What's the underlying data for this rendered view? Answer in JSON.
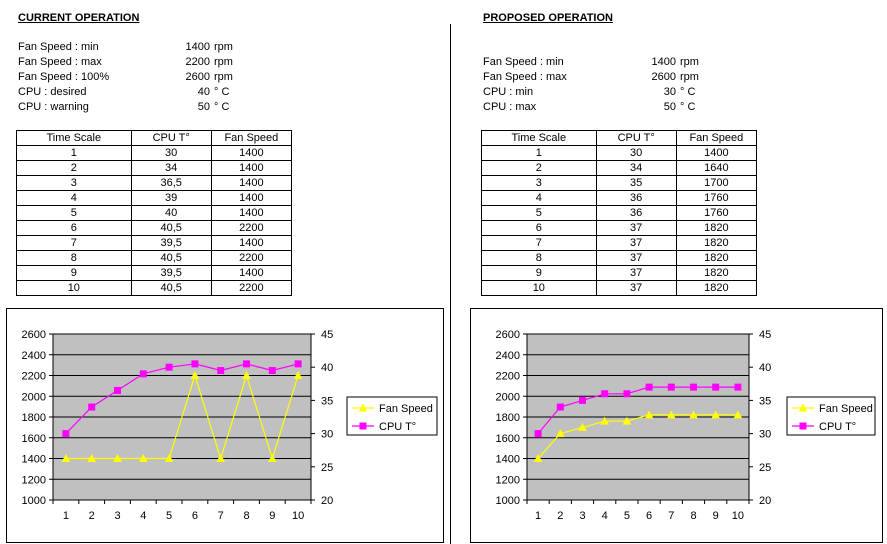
{
  "current": {
    "title": "CURRENT OPERATION",
    "params": [
      {
        "label": "Fan Speed : min",
        "value": "1400",
        "unit": "rpm"
      },
      {
        "label": "Fan Speed : max",
        "value": "2200",
        "unit": "rpm"
      },
      {
        "label": "Fan Speed : 100%",
        "value": "2600",
        "unit": "rpm"
      },
      {
        "label": "CPU : desired",
        "value": "40",
        "unit": "° C"
      },
      {
        "label": "CPU : warning",
        "value": "50",
        "unit": "° C"
      }
    ],
    "table": {
      "headers": [
        "Time Scale",
        "CPU T°",
        "Fan Speed"
      ],
      "rows": [
        [
          "1",
          "30",
          "1400"
        ],
        [
          "2",
          "34",
          "1400"
        ],
        [
          "3",
          "36,5",
          "1400"
        ],
        [
          "4",
          "39",
          "1400"
        ],
        [
          "5",
          "40",
          "1400"
        ],
        [
          "6",
          "40,5",
          "2200"
        ],
        [
          "7",
          "39,5",
          "1400"
        ],
        [
          "8",
          "40,5",
          "2200"
        ],
        [
          "9",
          "39,5",
          "1400"
        ],
        [
          "10",
          "40,5",
          "2200"
        ]
      ]
    }
  },
  "proposed": {
    "title": "PROPOSED OPERATION",
    "params": [
      {
        "label": "Fan Speed : min",
        "value": "1400",
        "unit": "rpm"
      },
      {
        "label": "Fan Speed : max",
        "value": "2600",
        "unit": "rpm"
      },
      {
        "label": "CPU : min",
        "value": "30",
        "unit": "° C"
      },
      {
        "label": "CPU : max",
        "value": "50",
        "unit": "° C"
      }
    ],
    "table": {
      "headers": [
        "Time Scale",
        "CPU T°",
        "Fan Speed"
      ],
      "rows": [
        [
          "1",
          "30",
          "1400"
        ],
        [
          "2",
          "34",
          "1640"
        ],
        [
          "3",
          "35",
          "1700"
        ],
        [
          "4",
          "36",
          "1760"
        ],
        [
          "5",
          "36",
          "1760"
        ],
        [
          "6",
          "37",
          "1820"
        ],
        [
          "7",
          "37",
          "1820"
        ],
        [
          "8",
          "37",
          "1820"
        ],
        [
          "9",
          "37",
          "1820"
        ],
        [
          "10",
          "37",
          "1820"
        ]
      ]
    }
  },
  "chart_data": [
    {
      "type": "line",
      "x": [
        1,
        2,
        3,
        4,
        5,
        6,
        7,
        8,
        9,
        10
      ],
      "y_left_ticks": [
        "1000",
        "1200",
        "1400",
        "1600",
        "1800",
        "2000",
        "2200",
        "2400",
        "2600"
      ],
      "y_right_ticks": [
        "20",
        "25",
        "30",
        "35",
        "40",
        "45"
      ],
      "ylim_left": [
        1000,
        2600
      ],
      "ylim_right": [
        20,
        45
      ],
      "series": [
        {
          "name": "Fan Speed",
          "axis": "left",
          "color": "#ffff00",
          "marker": "triangle",
          "values": [
            1400,
            1400,
            1400,
            1400,
            1400,
            2200,
            1400,
            2200,
            1400,
            2200
          ]
        },
        {
          "name": "CPU T°",
          "axis": "right",
          "color": "#ff00ff",
          "marker": "square",
          "values": [
            30,
            34,
            36.5,
            39,
            40,
            40.5,
            39.5,
            40.5,
            39.5,
            40.5
          ]
        }
      ],
      "plot_background": "#c0c0c0",
      "grid": true,
      "legend": "right"
    },
    {
      "type": "line",
      "x": [
        1,
        2,
        3,
        4,
        5,
        6,
        7,
        8,
        9,
        10
      ],
      "y_left_ticks": [
        "1000",
        "1200",
        "1400",
        "1600",
        "1800",
        "2000",
        "2200",
        "2400",
        "2600"
      ],
      "y_right_ticks": [
        "20",
        "25",
        "30",
        "35",
        "40",
        "45"
      ],
      "ylim_left": [
        1000,
        2600
      ],
      "ylim_right": [
        20,
        45
      ],
      "series": [
        {
          "name": "Fan Speed",
          "axis": "left",
          "color": "#ffff00",
          "marker": "triangle",
          "values": [
            1400,
            1640,
            1700,
            1760,
            1760,
            1820,
            1820,
            1820,
            1820,
            1820
          ]
        },
        {
          "name": "CPU T°",
          "axis": "right",
          "color": "#ff00ff",
          "marker": "square",
          "values": [
            30,
            34,
            35,
            36,
            36,
            37,
            37,
            37,
            37,
            37
          ]
        }
      ],
      "plot_background": "#c0c0c0",
      "grid": true,
      "legend": "right"
    }
  ]
}
